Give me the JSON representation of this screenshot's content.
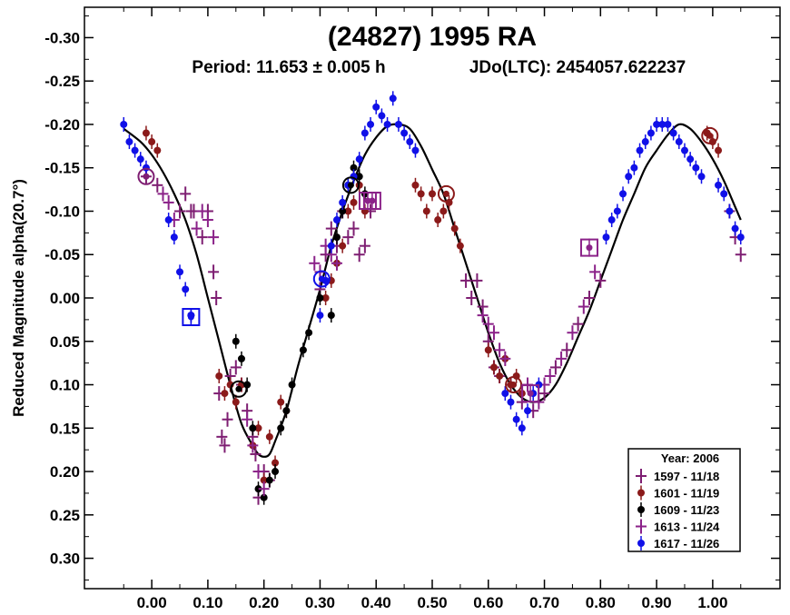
{
  "chart_data": {
    "type": "scatter",
    "title": "(24827) 1995 RA",
    "subtitle_period": "Period: 11.653 ± 0.005 h",
    "subtitle_epoch": "JDo(LTC): 2454057.622237",
    "ylabel": "Reduced Magnitude alpha(20.7°)",
    "xlabel": "",
    "xlim": [
      -0.12,
      1.12
    ],
    "ylim": [
      -0.335,
      0.335
    ],
    "y_inverted": true,
    "x_ticks": [
      0.0,
      0.1,
      0.2,
      0.3,
      0.4,
      0.5,
      0.6,
      0.7,
      0.8,
      0.9,
      1.0
    ],
    "x_tick_labels": [
      "0.00",
      "0.10",
      "0.20",
      "0.30",
      "0.40",
      "0.50",
      "0.60",
      "0.70",
      "0.80",
      "0.90",
      "1.00"
    ],
    "y_ticks": [
      -0.3,
      -0.25,
      -0.2,
      -0.15,
      -0.1,
      -0.05,
      0.0,
      0.05,
      0.1,
      0.15,
      0.2,
      0.25,
      0.3
    ],
    "y_tick_labels": [
      "-0.30",
      "-0.25",
      "-0.20",
      "-0.15",
      "-0.10",
      "-0.05",
      "0.00",
      "0.05",
      "0.10",
      "0.15",
      "0.20",
      "0.25",
      "0.30"
    ],
    "grid": false,
    "legend_position": "bottom-right",
    "legend_title": "Year: 2006",
    "fit_curve": {
      "name": "Fourier fit",
      "x": [
        -0.05,
        -0.02,
        0.0,
        0.02,
        0.04,
        0.06,
        0.08,
        0.1,
        0.12,
        0.14,
        0.16,
        0.18,
        0.19,
        0.2,
        0.21,
        0.22,
        0.24,
        0.26,
        0.28,
        0.3,
        0.32,
        0.34,
        0.36,
        0.38,
        0.4,
        0.42,
        0.44,
        0.46,
        0.48,
        0.5,
        0.52,
        0.54,
        0.56,
        0.58,
        0.6,
        0.62,
        0.64,
        0.66,
        0.68,
        0.7,
        0.72,
        0.74,
        0.76,
        0.78,
        0.8,
        0.82,
        0.84,
        0.86,
        0.88,
        0.9,
        0.92,
        0.94,
        0.96,
        0.98,
        1.0,
        1.02,
        1.04,
        1.05
      ],
      "y": [
        -0.195,
        -0.18,
        -0.165,
        -0.145,
        -0.12,
        -0.09,
        -0.05,
        0.0,
        0.05,
        0.1,
        0.145,
        0.17,
        0.18,
        0.183,
        0.18,
        0.165,
        0.13,
        0.08,
        0.035,
        -0.01,
        -0.06,
        -0.1,
        -0.135,
        -0.165,
        -0.185,
        -0.198,
        -0.2,
        -0.195,
        -0.175,
        -0.148,
        -0.12,
        -0.08,
        -0.04,
        0.0,
        0.04,
        0.075,
        0.1,
        0.115,
        0.12,
        0.115,
        0.1,
        0.075,
        0.045,
        0.015,
        -0.02,
        -0.055,
        -0.09,
        -0.12,
        -0.15,
        -0.17,
        -0.188,
        -0.2,
        -0.195,
        -0.18,
        -0.16,
        -0.135,
        -0.105,
        -0.09
      ]
    },
    "series": [
      {
        "name": "1597 - 11/18",
        "marker": "plus",
        "color": "#7e1e72",
        "x": [
          -0.01,
          0.01,
          0.05,
          0.06,
          0.07,
          0.075,
          0.09,
          0.1,
          0.11,
          0.115,
          0.12,
          0.125,
          0.13,
          0.135,
          0.14,
          0.15,
          0.16,
          0.17,
          0.18,
          0.185,
          0.19,
          0.2,
          0.21,
          0.3,
          0.31,
          0.32,
          0.33,
          0.34,
          0.35,
          0.36,
          0.37,
          0.38,
          0.39,
          0.56,
          0.57,
          0.58,
          0.59,
          0.6,
          0.61,
          0.62,
          0.64,
          0.66,
          0.68,
          0.7,
          0.72,
          0.74,
          0.76,
          0.78,
          0.8,
          1.03,
          1.04,
          1.05
        ],
        "y": [
          -0.14,
          -0.13,
          -0.1,
          -0.12,
          -0.1,
          -0.1,
          -0.07,
          -0.1,
          -0.03,
          0.0,
          0.11,
          0.16,
          0.17,
          0.14,
          0.09,
          0.08,
          0.1,
          0.13,
          0.16,
          0.18,
          0.23,
          0.2,
          0.21,
          -0.01,
          -0.05,
          -0.08,
          -0.06,
          -0.1,
          -0.07,
          -0.08,
          -0.05,
          -0.06,
          -0.1,
          -0.02,
          0.0,
          -0.02,
          0.01,
          0.05,
          0.08,
          0.09,
          0.1,
          0.12,
          0.13,
          0.11,
          0.08,
          0.06,
          0.03,
          0.0,
          -0.02,
          -0.1,
          -0.07,
          -0.05
        ]
      },
      {
        "name": "1601 - 11/19",
        "marker": "circle",
        "color": "#8b1a1a",
        "x": [
          -0.01,
          0.0,
          0.01,
          0.12,
          0.13,
          0.14,
          0.15,
          0.16,
          0.18,
          0.19,
          0.2,
          0.21,
          0.22,
          0.23,
          0.24,
          0.31,
          0.32,
          0.33,
          0.34,
          0.35,
          0.36,
          0.37,
          0.38,
          0.47,
          0.48,
          0.49,
          0.5,
          0.51,
          0.52,
          0.53,
          0.54,
          0.55,
          0.6,
          0.61,
          0.62,
          0.63,
          0.64,
          0.65,
          0.66,
          0.99,
          1.0,
          1.01
        ],
        "y": [
          -0.19,
          -0.18,
          -0.17,
          0.09,
          0.11,
          0.1,
          0.12,
          0.1,
          0.17,
          0.15,
          0.21,
          0.16,
          0.19,
          0.12,
          0.13,
          0.0,
          -0.02,
          -0.04,
          -0.06,
          -0.1,
          -0.11,
          -0.13,
          -0.1,
          -0.13,
          -0.12,
          -0.1,
          -0.12,
          -0.09,
          -0.1,
          -0.11,
          -0.08,
          -0.06,
          0.06,
          0.08,
          0.09,
          0.07,
          0.1,
          0.09,
          0.11,
          -0.19,
          -0.18,
          -0.17
        ]
      },
      {
        "name": "1609 - 11/23",
        "marker": "circle",
        "color": "#000000",
        "x": [
          0.15,
          0.16,
          0.17,
          0.18,
          0.19,
          0.2,
          0.21,
          0.22,
          0.23,
          0.24,
          0.25,
          0.27,
          0.28,
          0.3,
          0.32,
          0.33,
          0.34,
          0.35,
          0.36,
          0.37,
          0.38
        ],
        "y": [
          0.05,
          0.07,
          0.1,
          0.15,
          0.22,
          0.23,
          0.21,
          0.2,
          0.15,
          0.13,
          0.1,
          0.06,
          0.04,
          0.0,
          0.02,
          -0.07,
          -0.1,
          -0.13,
          -0.15,
          -0.14,
          -0.12
        ]
      },
      {
        "name": "1613 - 11/24",
        "marker": "plus",
        "color": "#8b2289",
        "x": [
          0.02,
          0.03,
          0.04,
          0.08,
          0.09,
          0.1,
          0.11,
          0.17,
          0.18,
          0.19,
          0.2,
          0.29,
          0.3,
          0.31,
          0.32,
          0.33,
          0.59,
          0.6,
          0.61,
          0.62,
          0.63,
          0.67,
          0.69,
          0.7,
          0.71,
          0.73,
          0.75,
          0.77,
          0.79
        ],
        "y": [
          -0.12,
          -0.11,
          -0.09,
          -0.08,
          -0.1,
          -0.09,
          -0.07,
          0.14,
          0.17,
          0.2,
          0.22,
          -0.04,
          -0.03,
          -0.06,
          -0.05,
          -0.04,
          0.02,
          0.03,
          0.04,
          0.06,
          0.07,
          0.1,
          0.12,
          0.1,
          0.09,
          0.07,
          0.04,
          0.01,
          -0.03
        ]
      },
      {
        "name": "1617 - 11/26",
        "marker": "circle",
        "color": "#1010e8",
        "x": [
          -0.05,
          -0.04,
          -0.03,
          -0.02,
          -0.01,
          0.03,
          0.04,
          0.05,
          0.06,
          0.07,
          0.07,
          0.3,
          0.31,
          0.32,
          0.33,
          0.34,
          0.35,
          0.36,
          0.37,
          0.38,
          0.39,
          0.4,
          0.41,
          0.42,
          0.43,
          0.44,
          0.45,
          0.46,
          0.47,
          0.63,
          0.64,
          0.65,
          0.66,
          0.67,
          0.68,
          0.69,
          0.81,
          0.82,
          0.83,
          0.84,
          0.85,
          0.86,
          0.87,
          0.88,
          0.89,
          0.9,
          0.91,
          0.92,
          0.93,
          0.94,
          0.95,
          0.96,
          0.97,
          0.98,
          1.01,
          1.02,
          1.03,
          1.04,
          1.05
        ],
        "y": [
          -0.2,
          -0.18,
          -0.17,
          -0.16,
          -0.15,
          -0.09,
          -0.07,
          -0.03,
          -0.01,
          0.02,
          0.02,
          0.02,
          -0.02,
          -0.06,
          -0.09,
          -0.11,
          -0.13,
          -0.14,
          -0.16,
          -0.19,
          -0.2,
          -0.22,
          -0.21,
          -0.2,
          -0.23,
          -0.2,
          -0.19,
          -0.18,
          -0.17,
          0.11,
          0.12,
          0.14,
          0.15,
          0.13,
          0.11,
          0.1,
          -0.07,
          -0.09,
          -0.1,
          -0.12,
          -0.14,
          -0.15,
          -0.17,
          -0.18,
          -0.19,
          -0.2,
          -0.2,
          -0.2,
          -0.19,
          -0.18,
          -0.17,
          -0.16,
          -0.15,
          -0.14,
          -0.13,
          -0.12,
          -0.1,
          -0.08,
          -0.07
        ]
      }
    ],
    "highlighted_points": [
      {
        "marker": "circle-ring",
        "color": "#7e1e72",
        "x": -0.01,
        "y": -0.14
      },
      {
        "marker": "square",
        "color": "#1010e8",
        "x": 0.07,
        "y": 0.022
      },
      {
        "marker": "circle-ring",
        "color": "#000000",
        "x": 0.155,
        "y": 0.105
      },
      {
        "marker": "circle-ring",
        "color": "#1010e8",
        "x": 0.303,
        "y": -0.022
      },
      {
        "marker": "circle-ring",
        "color": "#000000",
        "x": 0.355,
        "y": -0.13
      },
      {
        "marker": "square",
        "color": "#8b2289",
        "x": 0.385,
        "y": -0.112
      },
      {
        "marker": "square",
        "color": "#8b2289",
        "x": 0.393,
        "y": -0.112
      },
      {
        "marker": "circle-ring",
        "color": "#8b1a1a",
        "x": 0.525,
        "y": -0.12
      },
      {
        "marker": "circle-ring",
        "color": "#8b1a1a",
        "x": 0.645,
        "y": 0.1
      },
      {
        "marker": "square",
        "color": "#8b2289",
        "x": 0.675,
        "y": 0.11
      },
      {
        "marker": "square",
        "color": "#8b2289",
        "x": 0.78,
        "y": -0.058
      },
      {
        "marker": "circle-ring",
        "color": "#8b1a1a",
        "x": 0.995,
        "y": -0.187
      }
    ]
  }
}
